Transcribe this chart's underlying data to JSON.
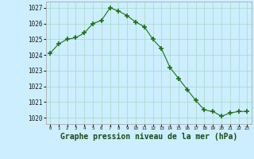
{
  "x": [
    0,
    1,
    2,
    3,
    4,
    5,
    6,
    7,
    8,
    9,
    10,
    11,
    12,
    13,
    14,
    15,
    16,
    17,
    18,
    19,
    20,
    21,
    22,
    23
  ],
  "y": [
    1024.1,
    1024.7,
    1025.0,
    1025.1,
    1025.4,
    1026.0,
    1026.2,
    1027.0,
    1026.8,
    1026.5,
    1026.1,
    1025.8,
    1025.0,
    1024.4,
    1023.2,
    1022.5,
    1021.8,
    1021.1,
    1020.5,
    1020.4,
    1020.1,
    1020.3,
    1020.4,
    1020.4
  ],
  "line_color": "#1e6e1e",
  "marker": "+",
  "marker_size": 4,
  "bg_color": "#cceeff",
  "grid_color": "#aaddcc",
  "xlabel": "Graphe pression niveau de la mer (hPa)",
  "xlabel_fontsize": 7,
  "ylabel_ticks": [
    1020,
    1021,
    1022,
    1023,
    1024,
    1025,
    1026,
    1027
  ],
  "xtick_labels": [
    "0",
    "1",
    "2",
    "3",
    "4",
    "5",
    "6",
    "7",
    "8",
    "9",
    "10",
    "11",
    "12",
    "13",
    "14",
    "15",
    "16",
    "17",
    "18",
    "19",
    "20",
    "21",
    "22",
    "23"
  ],
  "ylim": [
    1019.6,
    1027.4
  ],
  "xlim": [
    -0.5,
    23.5
  ]
}
